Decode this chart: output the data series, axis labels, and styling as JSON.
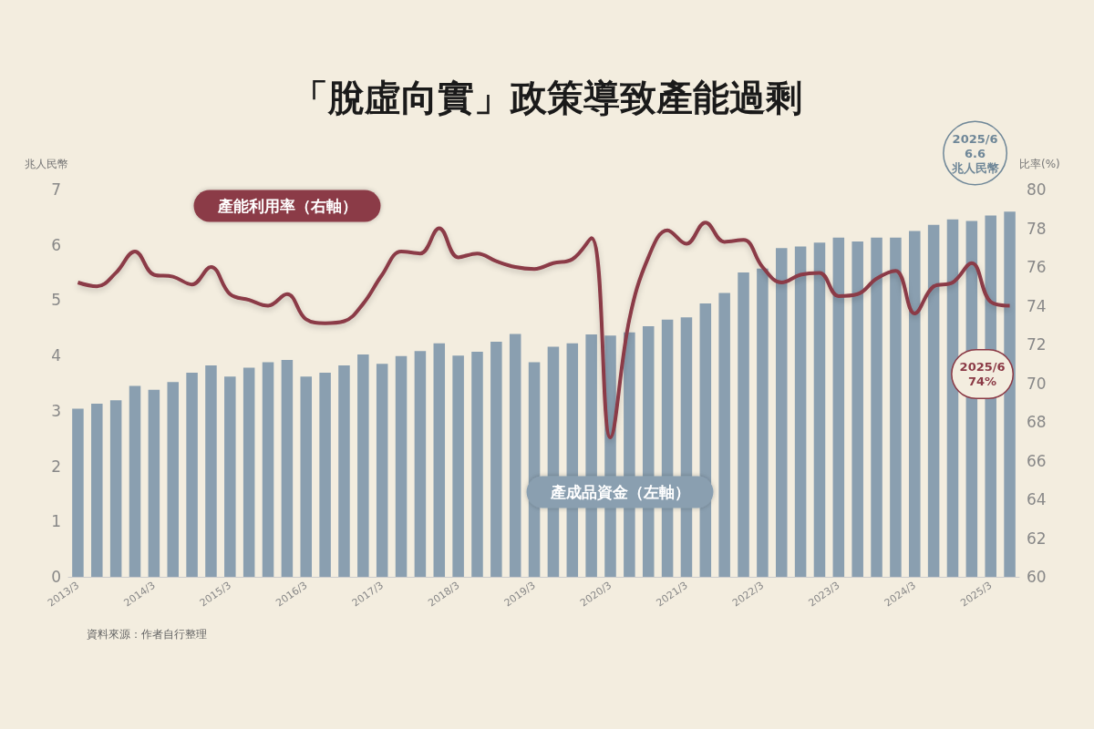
{
  "chart_data": {
    "type": "bar",
    "title": "「脫虛向實」政策導致產能過剩",
    "ylabel": "兆人民幣",
    "y2label": "比率(%)",
    "categories": [
      "2013/3",
      null,
      null,
      null,
      "2014/3",
      null,
      null,
      null,
      "2015/3",
      null,
      null,
      null,
      "2016/3",
      null,
      null,
      null,
      "2017/3",
      null,
      null,
      null,
      "2018/3",
      null,
      null,
      null,
      "2019/3",
      null,
      null,
      null,
      "2020/3",
      null,
      null,
      null,
      "2021/3",
      null,
      null,
      null,
      "2022/3",
      null,
      null,
      null,
      "2023/3",
      null,
      null,
      null,
      "2024/3",
      null,
      null,
      null,
      "2025/3",
      null
    ],
    "series": [
      {
        "name": "產成品資金（左軸）",
        "color": "#8a9fb0",
        "values": [
          3.04,
          3.13,
          3.19,
          3.45,
          3.38,
          3.52,
          3.69,
          3.82,
          3.62,
          3.78,
          3.88,
          3.92,
          3.62,
          3.69,
          3.82,
          4.02,
          3.85,
          3.99,
          4.08,
          4.22,
          4.0,
          4.07,
          4.25,
          4.39,
          3.88,
          4.16,
          4.22,
          4.38,
          4.36,
          4.42,
          4.53,
          4.65,
          4.69,
          4.94,
          5.13,
          5.5,
          5.57,
          5.94,
          5.97,
          6.04,
          6.13,
          6.06,
          6.13,
          6.13,
          6.25,
          6.36,
          6.46,
          6.43,
          6.53,
          6.6
        ]
      },
      {
        "name": "產能利用率（右軸）",
        "type": "line",
        "axis": "y2",
        "color": "#8b3a46",
        "values": [
          75.2,
          75.0,
          75.7,
          76.8,
          75.6,
          75.5,
          75.1,
          76.0,
          74.6,
          74.3,
          74.0,
          74.6,
          73.3,
          73.1,
          73.2,
          74.1,
          75.6,
          76.8,
          76.7,
          78.0,
          76.5,
          76.7,
          76.3,
          76.0,
          75.9,
          76.2,
          76.4,
          77.5,
          67.2,
          73.3,
          76.5,
          77.9,
          77.2,
          78.3,
          77.3,
          77.4,
          76.0,
          75.2,
          75.6,
          75.7,
          74.5,
          74.6,
          75.4,
          75.8,
          73.6,
          75.0,
          75.2,
          76.2,
          74.2,
          74.0
        ]
      }
    ],
    "ylim": [
      0,
      7
    ],
    "yticks": [
      0,
      1,
      2,
      3,
      4,
      5,
      6,
      7
    ],
    "y2lim": [
      60,
      80
    ],
    "y2ticks": [
      60,
      62,
      64,
      66,
      68,
      70,
      72,
      74,
      76,
      78,
      80
    ],
    "grid": false,
    "legend": false,
    "marker": "none",
    "annotations": [
      "2025/6\n6.6\n兆人民幣",
      "2025/6\n74%",
      "資料來源：作者自行整理"
    ]
  }
}
